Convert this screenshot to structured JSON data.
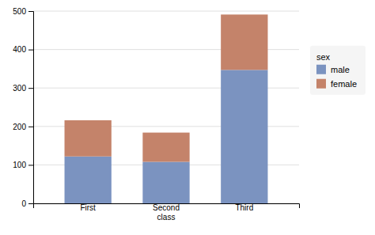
{
  "chart_data": {
    "type": "bar",
    "stacked": true,
    "categories": [
      "First",
      "Second\nclass",
      "Third"
    ],
    "series": [
      {
        "name": "male",
        "color": "#7B93C0",
        "values": [
          122,
          108,
          347
        ]
      },
      {
        "name": "female",
        "color": "#C4836A",
        "values": [
          94,
          76,
          144
        ]
      }
    ],
    "ylim": [
      0,
      500
    ],
    "yticks": [
      0,
      100,
      200,
      300,
      400,
      500
    ],
    "grid": true,
    "legend": "right",
    "legend_title": "sex"
  }
}
